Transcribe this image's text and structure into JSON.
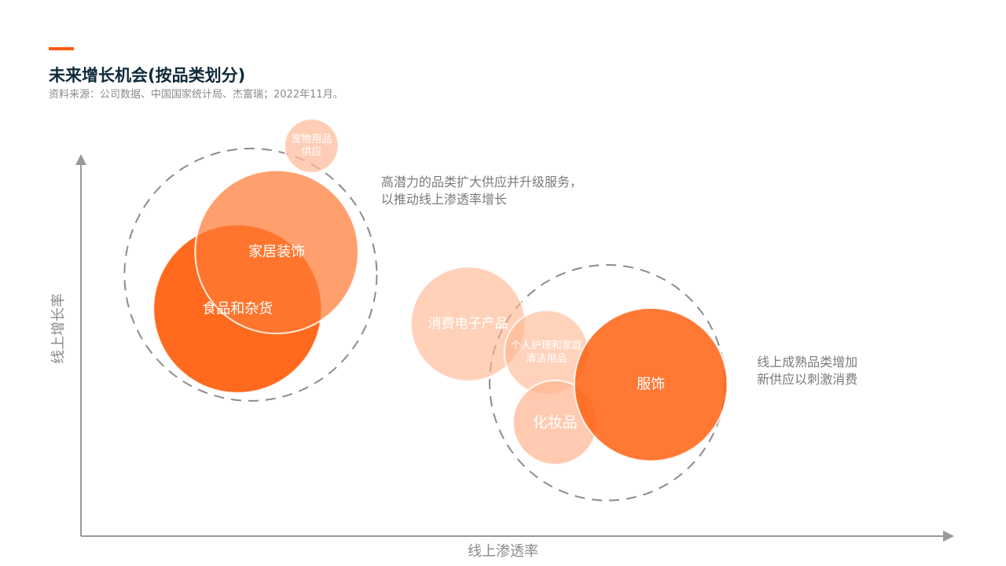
{
  "header": {
    "title": "未来增长机会(按品类划分)",
    "source": "资料来源：公司数据、中国国家统计局、杰富瑞；2022年11月。"
  },
  "colors": {
    "accent": "#ff5a0f",
    "axis": "#999999",
    "dashed_group": "#8c8c8c"
  },
  "chart_data": {
    "type": "bubble",
    "xlabel": "线上渗透率",
    "ylabel": "线上增长率",
    "xlim": [
      0,
      100
    ],
    "ylim": [
      0,
      100
    ],
    "grid": false,
    "legend": "none",
    "bubbles": [
      {
        "label": "食品和杂货",
        "x": 18,
        "y": 60,
        "size": 100,
        "color": "#ff6212",
        "opacity": 0.95
      },
      {
        "label": "家居装饰",
        "x": 22.5,
        "y": 75,
        "size": 97,
        "color": "#ff7a35",
        "opacity": 0.72
      },
      {
        "label": "宠物用品供应",
        "lines": [
          "宠物用品",
          "供应"
        ],
        "x": 26.5,
        "y": 103,
        "size": 32,
        "color": "#ffbc9c",
        "opacity": 0.75
      },
      {
        "label": "消费电子产品",
        "x": 44.5,
        "y": 56,
        "size": 68,
        "color": "#ffb48e",
        "opacity": 0.62
      },
      {
        "label": "个人护理和家庭清洁用品",
        "lines": [
          "个人护理和家庭",
          "清洁用品"
        ],
        "x": 53.5,
        "y": 48.5,
        "size": 50,
        "color": "#ffb48e",
        "opacity": 0.6
      },
      {
        "label": "化妆品",
        "x": 54.5,
        "y": 30,
        "size": 50,
        "color": "#ffb48e",
        "opacity": 0.7
      },
      {
        "label": "服饰",
        "x": 65.5,
        "y": 40,
        "size": 91,
        "color": "#ff6212",
        "opacity": 0.85
      }
    ],
    "groups": [
      {
        "x": 19.5,
        "y": 69,
        "size": 150
      },
      {
        "x": 60.5,
        "y": 40.5,
        "size": 140
      }
    ],
    "annotations": [
      {
        "lines": [
          "高潜力的品类扩大供应并升级服务，",
          "以推动线上渗透率增长"
        ],
        "x": 34.5,
        "y": 93.5
      },
      {
        "lines": [
          "线上成熟品类增加",
          "新供应以刺激消费"
        ],
        "x": 77.7,
        "y": 46
      }
    ]
  }
}
